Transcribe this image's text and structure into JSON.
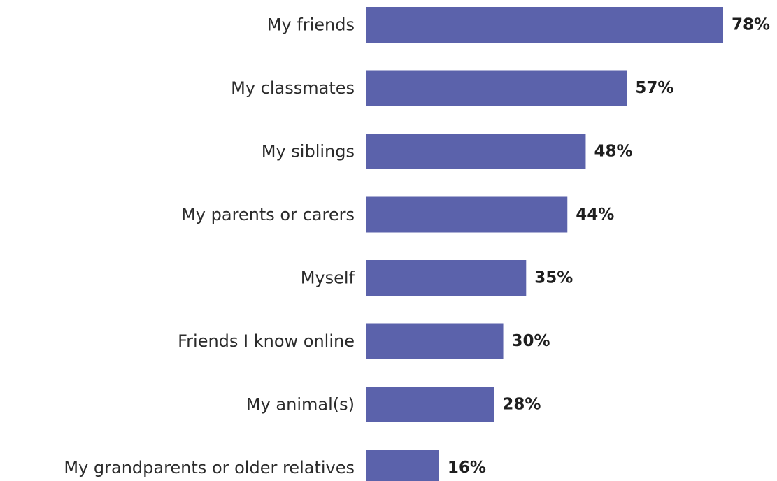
{
  "chart_data": {
    "type": "bar",
    "orientation": "horizontal",
    "categories": [
      "My friends",
      "My classmates",
      "My siblings",
      "My parents or carers",
      "Myself",
      "Friends I know online",
      "My animal(s)",
      "My grandparents or older relatives"
    ],
    "values": [
      78,
      57,
      48,
      44,
      35,
      30,
      28,
      16
    ],
    "value_labels": [
      "78%",
      "57%",
      "48%",
      "44%",
      "35%",
      "30%",
      "28%",
      "16%"
    ],
    "unit": "%",
    "xlim": [
      0,
      78
    ],
    "grid": false,
    "legend": "none",
    "bar_color": "#5b62ab"
  }
}
